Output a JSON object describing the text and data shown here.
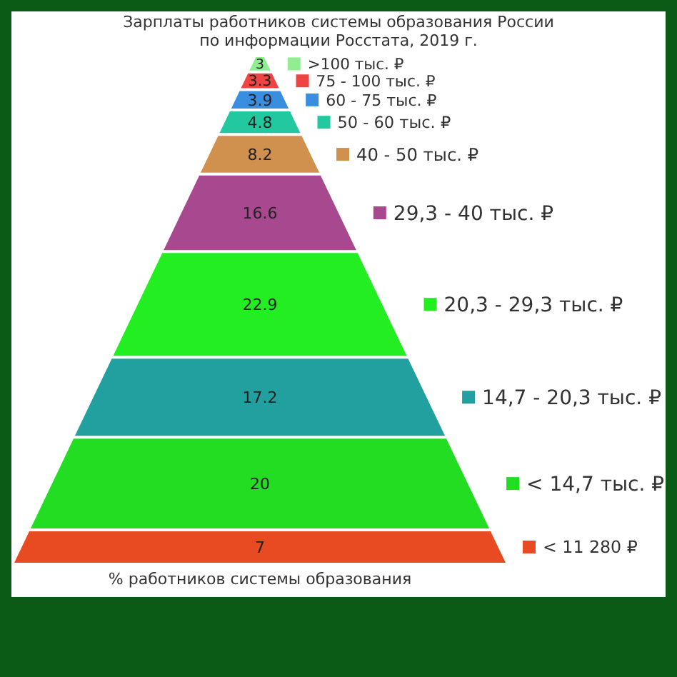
{
  "chart_data": {
    "type": "other",
    "title": "Зарплаты работников системы образования России по информации Росстата, 2019 г.",
    "xlabel": "% работников системы образования",
    "categories": [
      ">100 тыс. ₽",
      "75 - 100 тыс. ₽",
      "60 - 75 тыс. ₽",
      "50 - 60 тыс. ₽",
      "40 - 50 тыс. ₽",
      "29,3 - 40 тыс. ₽",
      "20,3 - 29,3 тыс. ₽",
      "14,7 - 20,3 тыс. ₽",
      "< 14,7 тыс. ₽",
      "< 11 280 ₽"
    ],
    "values": [
      3,
      3.3,
      3.9,
      4.8,
      8.2,
      16.6,
      22.9,
      17.2,
      20,
      7
    ],
    "colors": [
      "#90ee90",
      "#ee4444",
      "#3a8ee0",
      "#22c8a0",
      "#d0904e",
      "#a8488e",
      "#22ee22",
      "#22a0a0",
      "#22dd22",
      "#e84a22"
    ],
    "data_labels": true
  }
}
